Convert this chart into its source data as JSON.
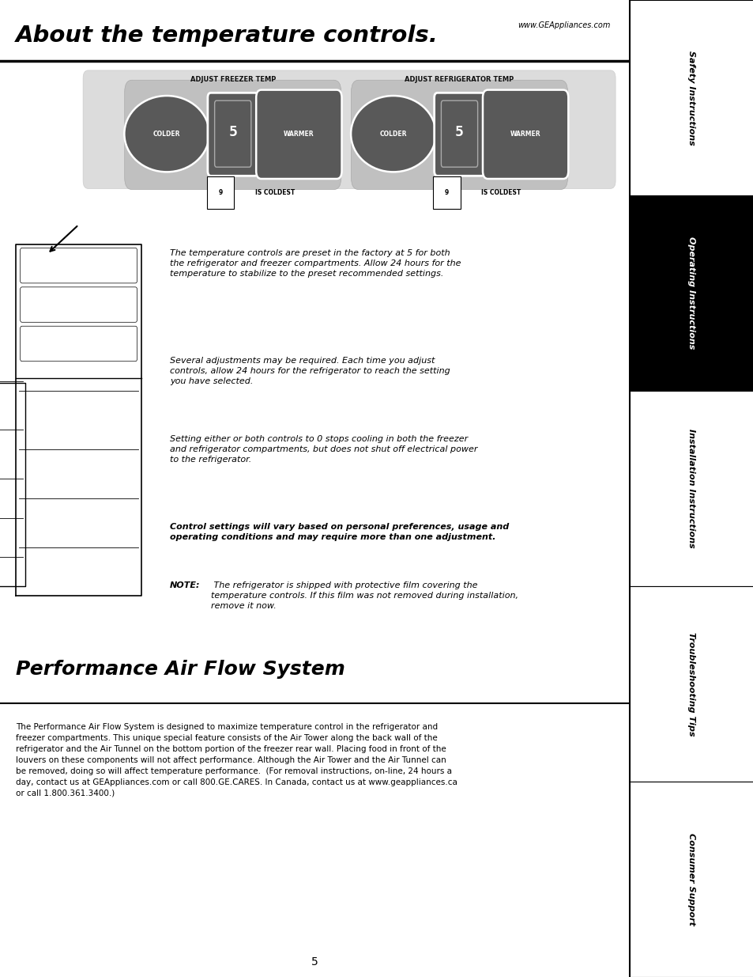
{
  "title": "About the temperature controls.",
  "website": "www.GEAppliances.com",
  "section2_title": "Performance Air Flow System",
  "sidebar_labels": [
    "Safety Instructions",
    "Operating Instructions",
    "Installation Instructions",
    "Troubleshooting Tips",
    "Consumer Support"
  ],
  "sidebar_active": 1,
  "page_number": "5",
  "bg_color": "#ffffff",
  "sidebar_active_bg": "#000000",
  "sidebar_active_fg": "#ffffff",
  "sidebar_fg": "#000000",
  "panel_bg": "#dcdcdc",
  "panel_inner_bg": "#c8c8c8",
  "btn_dark": "#595959",
  "btn_ring": "#aaaaaa",
  "body_text_1a": "The temperature controls are preset in the factory at ",
  "body_text_1b": "5",
  "body_text_1c": " for both\nthe refrigerator and freezer compartments. Allow 24 hours for the\ntemperature to stabilize to the preset recommended settings.",
  "body_text_2": "Several adjustments may be required. Each time you adjust\ncontrols, allow 24 hours for the refrigerator to reach the setting\nyou have selected.",
  "body_text_3a": "Setting either or both controls to ",
  "body_text_3b": "0",
  "body_text_3c": " stops cooling in both the freezer\nand refrigerator compartments, but does not shut off electrical power\nto the refrigerator.",
  "body_text_4": "Control settings will vary based on personal preferences, usage and\noperating conditions and may require more than one adjustment.",
  "body_text_5_note": "NOTE:",
  "body_text_5": " The refrigerator is shipped with protective film covering the\ntemperature controls. If this film was not removed during installation,\nremove it now.",
  "perf_text": "The Performance Air Flow System is designed to maximize temperature control in the refrigerator and\nfreezer compartments. This unique special feature consists of the Air Tower along the back wall of the\nrefrigerator and the Air Tunnel on the bottom portion of the freezer rear wall. Placing food in front of the\nlouvers on these components will not affect performance. Although the Air Tower and the Air Tunnel can\nbe removed, doing so will affect temperature performance.  (For removal instructions, on-line, 24 hours a\nday, contact us at GEAppliances.com or call 800.GE.CARES. In Canada, contact us at www.geappliances.ca\nor call 1.800.361.3400.)"
}
